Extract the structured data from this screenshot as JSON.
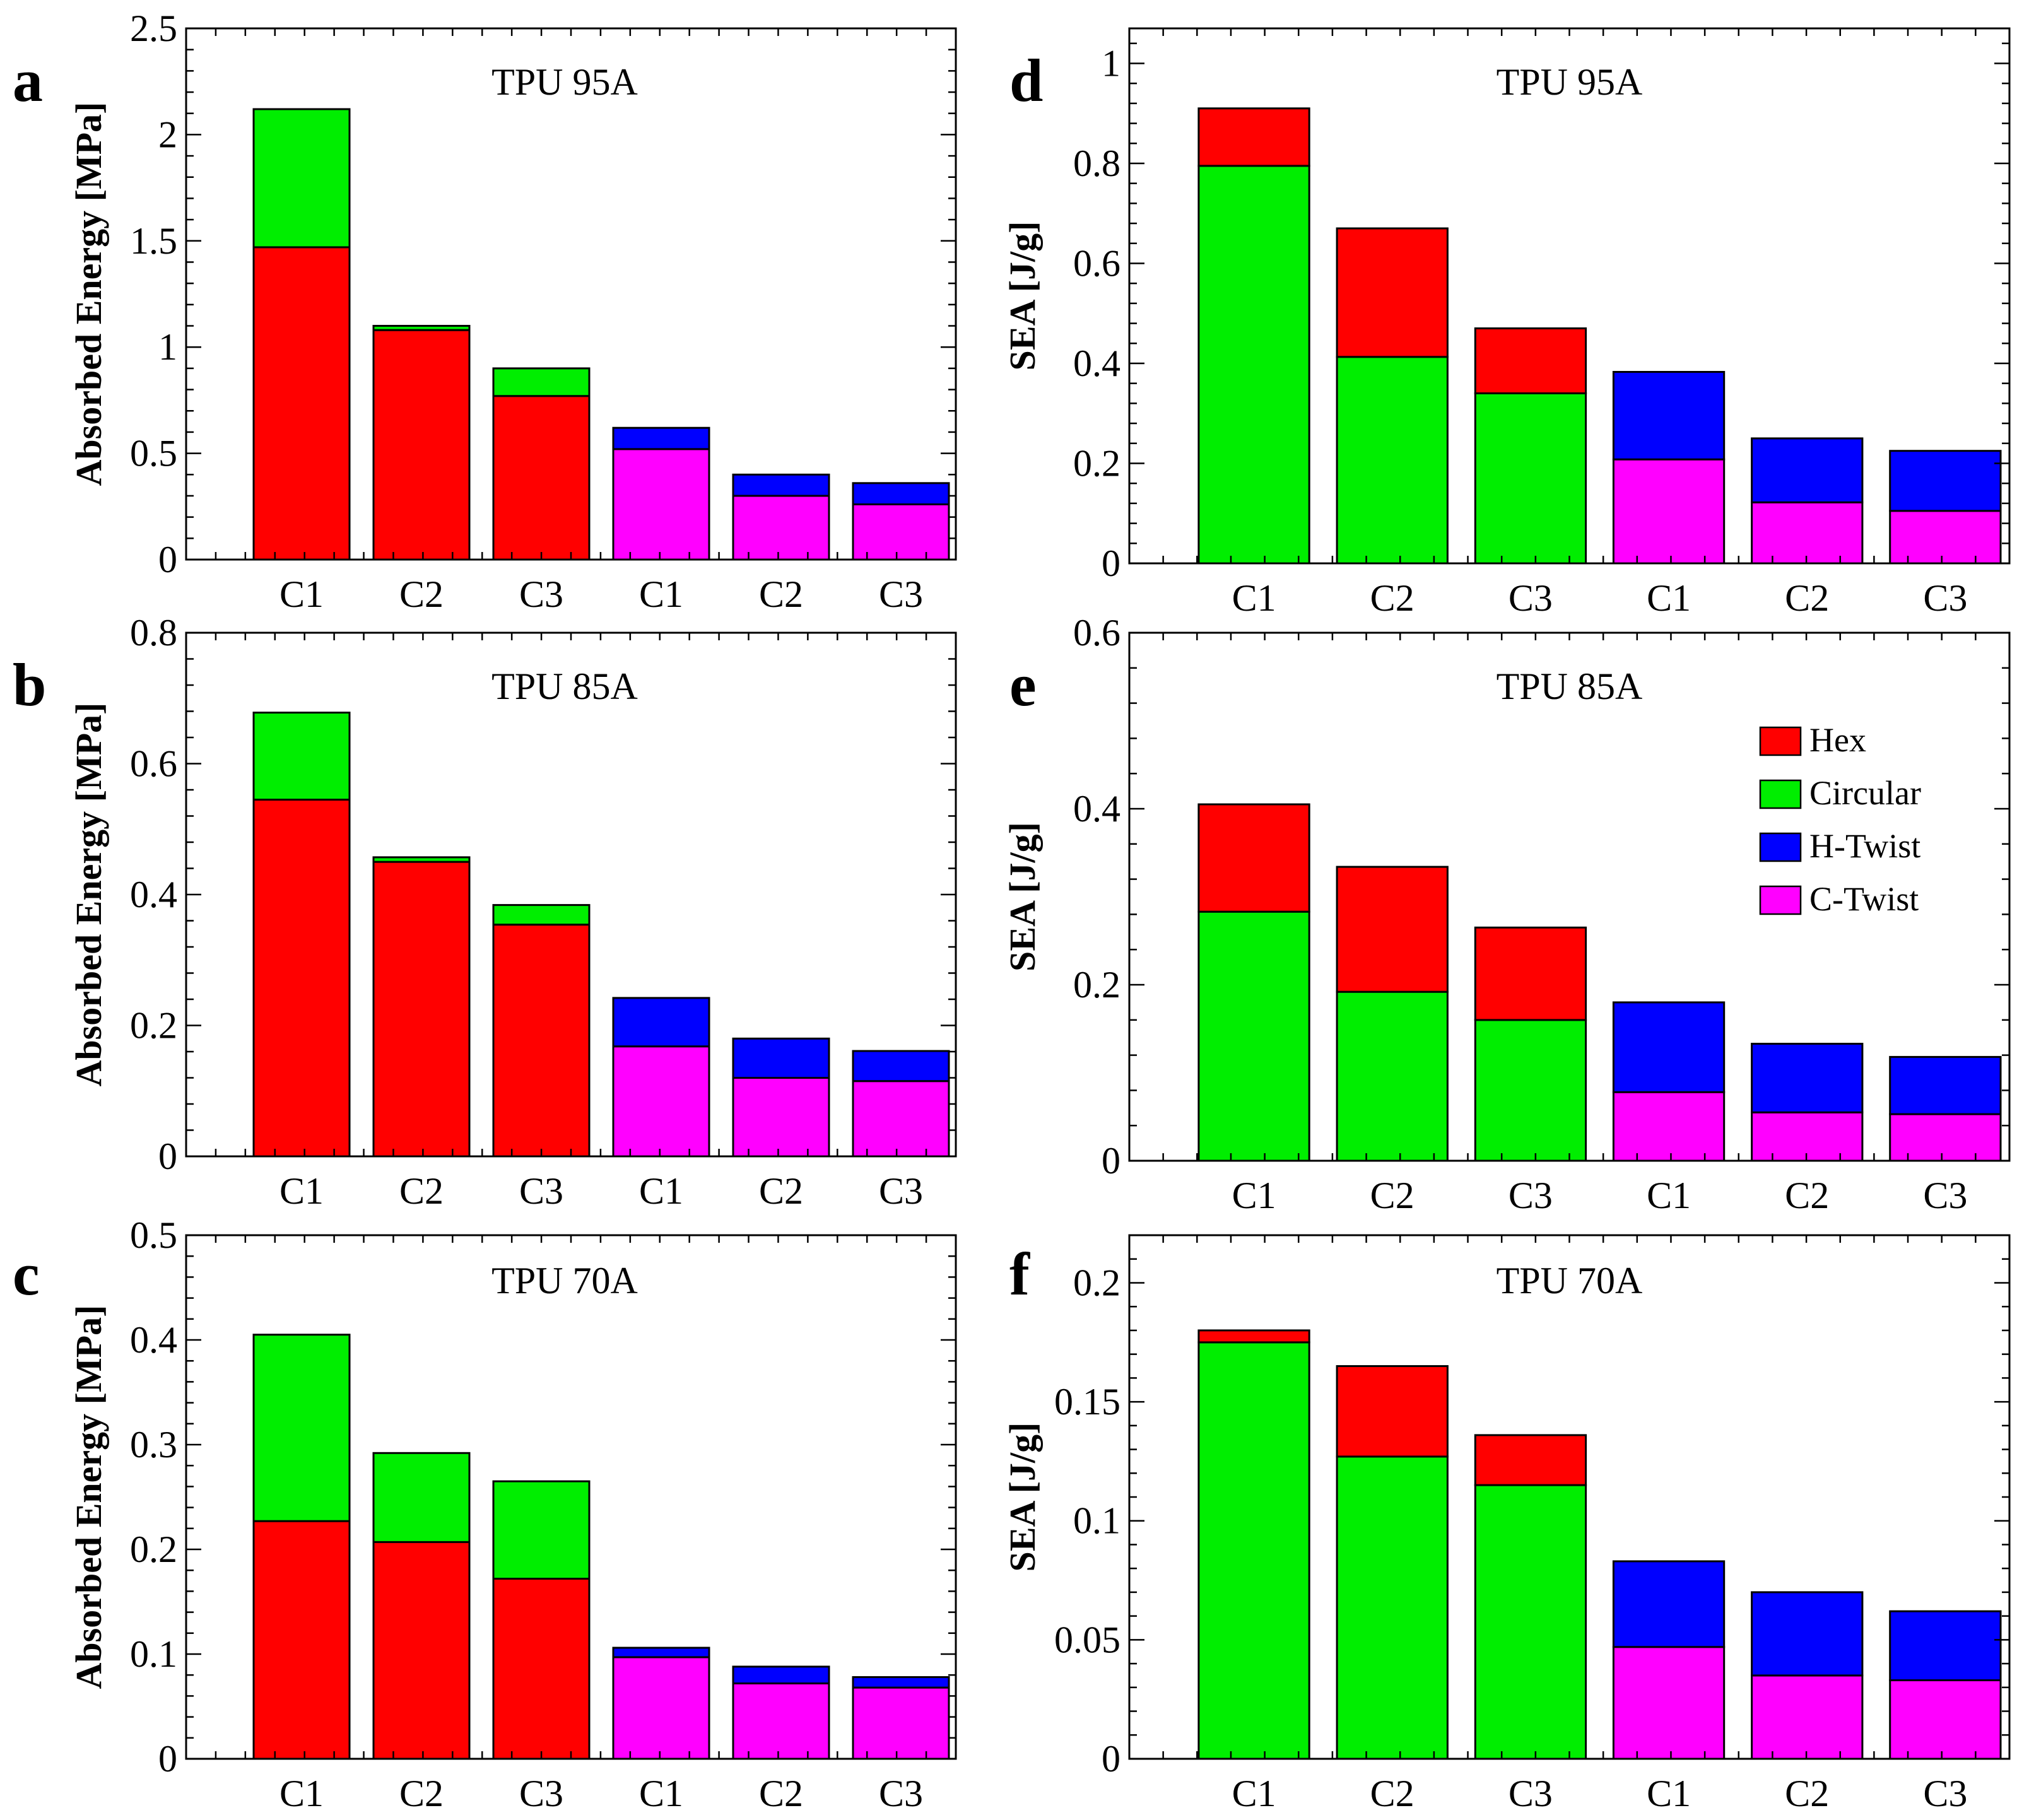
{
  "colors": {
    "Hex": "#ff0000",
    "Circular": "#00ee00",
    "H-Twist": "#0000ff",
    "C-Twist": "#ff00ff"
  },
  "legend": {
    "entries": [
      "Hex",
      "Circular",
      "H-Twist",
      "C-Twist"
    ]
  },
  "chart_data": [
    {
      "letter": "a",
      "type": "bar",
      "stacked": true,
      "title": "TPU 95A",
      "ylabel": "Absorbed Energy [MPa]",
      "ylim": [
        0,
        2.5
      ],
      "yticks": [
        0,
        0.5,
        1,
        1.5,
        2,
        2.5
      ],
      "ytick_labels": [
        "0",
        "0.5",
        "1",
        "1.5",
        "2",
        "2.5"
      ],
      "categories": [
        "C1",
        "C2",
        "C3",
        "C1",
        "C2",
        "C3"
      ],
      "bars": [
        {
          "label": "C1",
          "segments": [
            {
              "name": "Hex",
              "value": 1.47
            },
            {
              "name": "Circular",
              "value": 0.65
            }
          ]
        },
        {
          "label": "C2",
          "segments": [
            {
              "name": "Hex",
              "value": 1.08
            },
            {
              "name": "Circular",
              "value": 0.02
            }
          ]
        },
        {
          "label": "C3",
          "segments": [
            {
              "name": "Hex",
              "value": 0.77
            },
            {
              "name": "Circular",
              "value": 0.13
            }
          ]
        },
        {
          "label": "C1",
          "segments": [
            {
              "name": "C-Twist",
              "value": 0.52
            },
            {
              "name": "H-Twist",
              "value": 0.1
            }
          ]
        },
        {
          "label": "C2",
          "segments": [
            {
              "name": "C-Twist",
              "value": 0.3
            },
            {
              "name": "H-Twist",
              "value": 0.1
            }
          ]
        },
        {
          "label": "C3",
          "segments": [
            {
              "name": "C-Twist",
              "value": 0.26
            },
            {
              "name": "H-Twist",
              "value": 0.1
            }
          ]
        }
      ]
    },
    {
      "letter": "b",
      "type": "bar",
      "stacked": true,
      "title": "TPU 85A",
      "ylabel": "Absorbed Energy [MPa]",
      "ylim": [
        0,
        0.8
      ],
      "yticks": [
        0,
        0.2,
        0.4,
        0.6,
        0.8
      ],
      "ytick_labels": [
        "0",
        "0.2",
        "0.4",
        "0.6",
        "0.8"
      ],
      "categories": [
        "C1",
        "C2",
        "C3",
        "C1",
        "C2",
        "C3"
      ],
      "bars": [
        {
          "label": "C1",
          "segments": [
            {
              "name": "Hex",
              "value": 0.545
            },
            {
              "name": "Circular",
              "value": 0.133
            }
          ]
        },
        {
          "label": "C2",
          "segments": [
            {
              "name": "Hex",
              "value": 0.45
            },
            {
              "name": "Circular",
              "value": 0.007
            }
          ]
        },
        {
          "label": "C3",
          "segments": [
            {
              "name": "Hex",
              "value": 0.354
            },
            {
              "name": "Circular",
              "value": 0.03
            }
          ]
        },
        {
          "label": "C1",
          "segments": [
            {
              "name": "C-Twist",
              "value": 0.168
            },
            {
              "name": "H-Twist",
              "value": 0.074
            }
          ]
        },
        {
          "label": "C2",
          "segments": [
            {
              "name": "C-Twist",
              "value": 0.12
            },
            {
              "name": "H-Twist",
              "value": 0.06
            }
          ]
        },
        {
          "label": "C3",
          "segments": [
            {
              "name": "C-Twist",
              "value": 0.115
            },
            {
              "name": "H-Twist",
              "value": 0.046
            }
          ]
        }
      ]
    },
    {
      "letter": "c",
      "type": "bar",
      "stacked": true,
      "title": "TPU 70A",
      "ylabel": "Absorbed Energy [MPa]",
      "ylim": [
        0,
        0.5
      ],
      "yticks": [
        0,
        0.1,
        0.2,
        0.3,
        0.4,
        0.5
      ],
      "ytick_labels": [
        "0",
        "0.1",
        "0.2",
        "0.3",
        "0.4",
        "0.5"
      ],
      "categories": [
        "C1",
        "C2",
        "C3",
        "C1",
        "C2",
        "C3"
      ],
      "bars": [
        {
          "label": "C1",
          "segments": [
            {
              "name": "Hex",
              "value": 0.227
            },
            {
              "name": "Circular",
              "value": 0.178
            }
          ]
        },
        {
          "label": "C2",
          "segments": [
            {
              "name": "Hex",
              "value": 0.207
            },
            {
              "name": "Circular",
              "value": 0.085
            }
          ]
        },
        {
          "label": "C3",
          "segments": [
            {
              "name": "Hex",
              "value": 0.172
            },
            {
              "name": "Circular",
              "value": 0.093
            }
          ]
        },
        {
          "label": "C1",
          "segments": [
            {
              "name": "C-Twist",
              "value": 0.097
            },
            {
              "name": "H-Twist",
              "value": 0.009
            }
          ]
        },
        {
          "label": "C2",
          "segments": [
            {
              "name": "C-Twist",
              "value": 0.072
            },
            {
              "name": "H-Twist",
              "value": 0.016
            }
          ]
        },
        {
          "label": "C3",
          "segments": [
            {
              "name": "C-Twist",
              "value": 0.068
            },
            {
              "name": "H-Twist",
              "value": 0.01
            }
          ]
        }
      ]
    },
    {
      "letter": "d",
      "type": "bar",
      "stacked": true,
      "title": "TPU 95A",
      "ylabel": "SEA [J/g]",
      "ylim": [
        0,
        1.07
      ],
      "yticks": [
        0,
        0.2,
        0.4,
        0.6,
        0.8,
        1
      ],
      "ytick_labels": [
        "0",
        "0.2",
        "0.4",
        "0.6",
        "0.8",
        "1"
      ],
      "categories": [
        "C1",
        "C2",
        "C3",
        "C1",
        "C2",
        "C3"
      ],
      "bars": [
        {
          "label": "C1",
          "segments": [
            {
              "name": "Circular",
              "value": 0.795
            },
            {
              "name": "Hex",
              "value": 0.115
            }
          ]
        },
        {
          "label": "C2",
          "segments": [
            {
              "name": "Circular",
              "value": 0.413
            },
            {
              "name": "Hex",
              "value": 0.257
            }
          ]
        },
        {
          "label": "C3",
          "segments": [
            {
              "name": "Circular",
              "value": 0.34
            },
            {
              "name": "Hex",
              "value": 0.13
            }
          ]
        },
        {
          "label": "C1",
          "segments": [
            {
              "name": "C-Twist",
              "value": 0.208
            },
            {
              "name": "H-Twist",
              "value": 0.175
            }
          ]
        },
        {
          "label": "C2",
          "segments": [
            {
              "name": "C-Twist",
              "value": 0.122
            },
            {
              "name": "H-Twist",
              "value": 0.128
            }
          ]
        },
        {
          "label": "C3",
          "segments": [
            {
              "name": "C-Twist",
              "value": 0.105
            },
            {
              "name": "H-Twist",
              "value": 0.12
            }
          ]
        }
      ]
    },
    {
      "letter": "e",
      "type": "bar",
      "stacked": true,
      "title": "TPU 85A",
      "ylabel": "SEA [J/g]",
      "ylim": [
        0,
        0.6
      ],
      "yticks": [
        0,
        0.2,
        0.4,
        0.6
      ],
      "ytick_labels": [
        "0",
        "0.2",
        "0.4",
        "0.6"
      ],
      "categories": [
        "C1",
        "C2",
        "C3",
        "C1",
        "C2",
        "C3"
      ],
      "legend_position": "top-right",
      "bars": [
        {
          "label": "C1",
          "segments": [
            {
              "name": "Circular",
              "value": 0.283
            },
            {
              "name": "Hex",
              "value": 0.122
            }
          ]
        },
        {
          "label": "C2",
          "segments": [
            {
              "name": "Circular",
              "value": 0.192
            },
            {
              "name": "Hex",
              "value": 0.142
            }
          ]
        },
        {
          "label": "C3",
          "segments": [
            {
              "name": "Circular",
              "value": 0.16
            },
            {
              "name": "Hex",
              "value": 0.105
            }
          ]
        },
        {
          "label": "C1",
          "segments": [
            {
              "name": "C-Twist",
              "value": 0.078
            },
            {
              "name": "H-Twist",
              "value": 0.102
            }
          ]
        },
        {
          "label": "C2",
          "segments": [
            {
              "name": "C-Twist",
              "value": 0.055
            },
            {
              "name": "H-Twist",
              "value": 0.078
            }
          ]
        },
        {
          "label": "C3",
          "segments": [
            {
              "name": "C-Twist",
              "value": 0.053
            },
            {
              "name": "H-Twist",
              "value": 0.065
            }
          ]
        }
      ]
    },
    {
      "letter": "f",
      "type": "bar",
      "stacked": true,
      "title": "TPU 70A",
      "ylabel": "SEA [J/g]",
      "ylim": [
        0,
        0.22
      ],
      "yticks": [
        0,
        0.05,
        0.1,
        0.15,
        0.2
      ],
      "ytick_labels": [
        "0",
        "0.05",
        "0.1",
        "0.15",
        "0.2"
      ],
      "categories": [
        "C1",
        "C2",
        "C3",
        "C1",
        "C2",
        "C3"
      ],
      "bars": [
        {
          "label": "C1",
          "segments": [
            {
              "name": "Circular",
              "value": 0.175
            },
            {
              "name": "Hex",
              "value": 0.005
            }
          ]
        },
        {
          "label": "C2",
          "segments": [
            {
              "name": "Circular",
              "value": 0.127
            },
            {
              "name": "Hex",
              "value": 0.038
            }
          ]
        },
        {
          "label": "C3",
          "segments": [
            {
              "name": "Circular",
              "value": 0.115
            },
            {
              "name": "Hex",
              "value": 0.021
            }
          ]
        },
        {
          "label": "C1",
          "segments": [
            {
              "name": "C-Twist",
              "value": 0.047
            },
            {
              "name": "H-Twist",
              "value": 0.036
            }
          ]
        },
        {
          "label": "C2",
          "segments": [
            {
              "name": "C-Twist",
              "value": 0.035
            },
            {
              "name": "H-Twist",
              "value": 0.035
            }
          ]
        },
        {
          "label": "C3",
          "segments": [
            {
              "name": "C-Twist",
              "value": 0.033
            },
            {
              "name": "H-Twist",
              "value": 0.029
            }
          ]
        }
      ]
    }
  ]
}
